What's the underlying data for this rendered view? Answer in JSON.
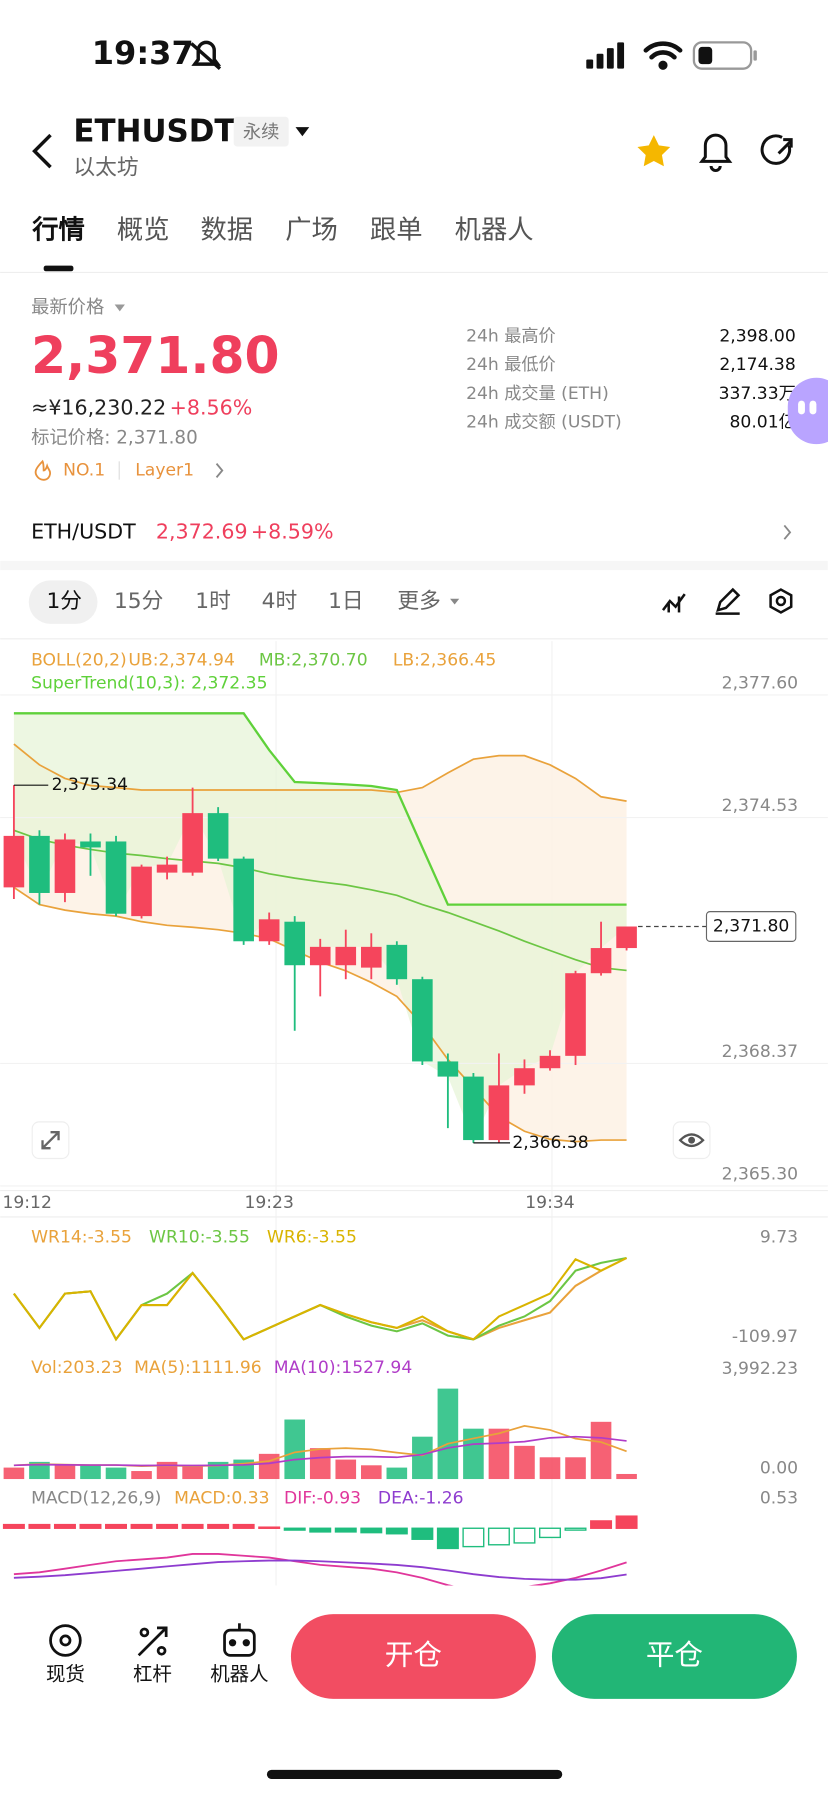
{
  "status": {
    "time": "19:37"
  },
  "header": {
    "title": "ETHUSDT",
    "tag": "永续",
    "subtitle": "以太坊"
  },
  "tabs": [
    "行情",
    "概览",
    "数据",
    "广场",
    "跟单",
    "机器人"
  ],
  "price": {
    "label": "最新价格",
    "last": "2,371.80",
    "cny": "≈¥16,230.22",
    "change": "+8.56%",
    "mark": "标记价格: 2,371.80",
    "rank": "NO.1",
    "sector": "Layer1"
  },
  "stats": [
    [
      "24h 最高价",
      "2,398.00"
    ],
    [
      "24h 最低价",
      "2,174.38"
    ],
    [
      "24h 成交量 (ETH)",
      "337.33万"
    ],
    [
      "24h 成交额 (USDT)",
      "80.01亿"
    ]
  ],
  "pair": {
    "name": "ETH/USDT",
    "price": "2,372.69",
    "change": "+8.59%"
  },
  "intervals": [
    "1分",
    "15分",
    "1时",
    "4时",
    "1日",
    "更多"
  ],
  "nav": [
    "现货",
    "杠杆",
    "机器人"
  ],
  "actions": {
    "open": "开仓",
    "close": "平仓"
  },
  "chart_data": {
    "type": "candlestick",
    "categories": [
      "19:12",
      null,
      null,
      null,
      null,
      null,
      null,
      null,
      null,
      null,
      "19:23",
      null,
      null,
      null,
      null,
      null,
      null,
      null,
      null,
      null,
      null,
      "19:34",
      null,
      null,
      null
    ],
    "open": [
      2372.78,
      2374.07,
      2372.64,
      2373.93,
      2373.93,
      2372.06,
      2373.15,
      2373.15,
      2374.64,
      2373.5,
      2371.43,
      2371.92,
      2370.83,
      2370.83,
      2370.77,
      2371.34,
      2370.48,
      2368.42,
      2368.04,
      2366.45,
      2367.82,
      2368.25,
      2368.56,
      2370.63,
      2371.26
    ],
    "high": [
      2375.34,
      2374.21,
      2374.13,
      2374.13,
      2374.07,
      2373.35,
      2373.55,
      2375.28,
      2374.79,
      2373.55,
      2372.15,
      2372.06,
      2371.49,
      2371.72,
      2371.63,
      2371.43,
      2370.54,
      2368.62,
      2368.13,
      2368.62,
      2368.47,
      2368.7,
      2370.69,
      2371.92,
      2371.8
    ],
    "low": [
      2372.49,
      2372.35,
      2372.41,
      2373.07,
      2372.06,
      2372.0,
      2372.98,
      2373.07,
      2373.44,
      2371.34,
      2371.34,
      2369.19,
      2370.05,
      2370.48,
      2370.48,
      2370.34,
      2368.33,
      2366.75,
      2366.38,
      2366.38,
      2367.61,
      2368.19,
      2368.33,
      2370.57,
      2371.2
    ],
    "close": [
      2374.07,
      2372.64,
      2373.98,
      2373.78,
      2372.12,
      2373.3,
      2373.35,
      2374.64,
      2373.5,
      2371.43,
      2371.98,
      2370.83,
      2371.29,
      2371.29,
      2371.29,
      2370.48,
      2368.42,
      2368.04,
      2366.45,
      2367.82,
      2368.25,
      2368.56,
      2370.63,
      2371.26,
      2371.8
    ],
    "up_color": "#f5455c",
    "down_color": "#1fbd7e",
    "ylim": [
      2365.3,
      2378.95
    ],
    "yticks": [
      {
        "value": 2377.6,
        "label": "2,377.60"
      },
      {
        "value": 2374.53,
        "label": "2,374.53"
      },
      {
        "value": 2368.37,
        "label": "2,368.37"
      },
      {
        "value": 2365.3,
        "label": "2,365.30"
      }
    ],
    "current_price": {
      "value": 2371.8,
      "label": "2,371.80"
    },
    "high_label": {
      "value": 2375.34,
      "label": "2,375.34"
    },
    "low_label": {
      "value": 2366.38,
      "label": "2,366.38"
    },
    "boll": {
      "label": "BOLL(20,2)",
      "upper_label": "UB:2,374.94",
      "middle_label": "MB:2,370.70",
      "lower_label": "LB:2,366.45",
      "color": "#e9a23b",
      "middle_color": "#6cc644",
      "upper": [
        2376.37,
        2375.85,
        2375.51,
        2375.33,
        2375.28,
        2375.22,
        2375.22,
        2375.22,
        2375.22,
        2375.22,
        2375.22,
        2375.22,
        2375.22,
        2375.22,
        2375.22,
        2375.16,
        2375.28,
        2375.65,
        2375.99,
        2376.08,
        2376.08,
        2375.85,
        2375.51,
        2375.05,
        2374.94
      ],
      "middle": [
        2374.21,
        2373.98,
        2373.84,
        2373.73,
        2373.64,
        2373.58,
        2373.5,
        2373.44,
        2373.38,
        2373.27,
        2373.12,
        2373.01,
        2372.92,
        2372.84,
        2372.72,
        2372.58,
        2372.35,
        2372.15,
        2371.92,
        2371.69,
        2371.43,
        2371.2,
        2370.97,
        2370.77,
        2370.7
      ],
      "lower": [
        2372.78,
        2372.35,
        2372.21,
        2372.12,
        2372.06,
        2371.92,
        2371.83,
        2371.78,
        2371.72,
        2371.63,
        2371.49,
        2371.2,
        2370.91,
        2370.69,
        2370.4,
        2370.05,
        2369.34,
        2368.47,
        2367.76,
        2367.04,
        2366.67,
        2366.47,
        2366.41,
        2366.45,
        2366.45
      ]
    },
    "supertrend": {
      "label": "SuperTrend(10,3): 2,372.35",
      "color": "#5fd13a",
      "values": [
        2377.14,
        2377.14,
        2377.14,
        2377.14,
        2377.14,
        2377.14,
        2377.14,
        2377.14,
        2377.14,
        2377.14,
        2376.22,
        2375.42,
        2375.39,
        2375.36,
        2375.32,
        2375.22,
        2373.78,
        2372.35,
        2372.35,
        2372.35,
        2372.35,
        2372.35,
        2372.35,
        2372.35,
        2372.35
      ]
    },
    "wr": {
      "ylim": [
        -109.97,
        9.73
      ],
      "yticks": [
        9.73,
        -109.97
      ],
      "series": [
        {
          "name": "WR14:-3.55",
          "color": "#e9a23b",
          "values": [
            -50.12,
            -95.01,
            -50.12,
            -47.13,
            -109.97,
            -65.08,
            -65.08,
            -23.19,
            -65.08,
            -109.97,
            -95.01,
            -80.05,
            -65.08,
            -77.05,
            -87.53,
            -95.01,
            -85.0,
            -99.49,
            -109.97,
            -95.0,
            -85.0,
            -75.0,
            -40.0,
            -20.2,
            -3.55
          ]
        },
        {
          "name": "WR10:-3.55",
          "color": "#6cc644",
          "values": [
            -50.12,
            -95.01,
            -50.12,
            -47.13,
            -109.97,
            -65.08,
            -50.12,
            -23.19,
            -65.08,
            -109.97,
            -95.01,
            -80.05,
            -65.08,
            -80.05,
            -92.0,
            -99.49,
            -89.0,
            -105.0,
            -109.97,
            -92.0,
            -80.05,
            -60.0,
            -20.2,
            -10.0,
            -3.55
          ]
        },
        {
          "name": "WR6:-3.55",
          "color": "#d9b400",
          "values": [
            -50.12,
            -95.01,
            -50.12,
            -47.13,
            -109.97,
            -65.08,
            -65.08,
            -23.19,
            -65.08,
            -109.97,
            -95.01,
            -80.05,
            -65.08,
            -77.05,
            -87.53,
            -95.01,
            -80.05,
            -99.49,
            -109.97,
            -80.05,
            -65.08,
            -50.12,
            -5.23,
            -20.2,
            -3.55
          ]
        }
      ]
    },
    "volume": {
      "label": "Vol:203.23",
      "ylim": [
        0,
        3992.23
      ],
      "yticks": [
        {
          "value": 3992.23,
          "label": "3,992.23"
        },
        {
          "value": 0,
          "label": "0.00"
        }
      ],
      "values": [
        459,
        688,
        551,
        551,
        459,
        321,
        688,
        551,
        688,
        780,
        1010,
        2386,
        1239,
        780,
        551,
        459,
        1698,
        3625,
        2019,
        2019,
        1331,
        872,
        872,
        2294,
        203.23
      ],
      "ma": [
        {
          "name": "MA(5):1111.96",
          "color": "#e9a23b",
          "values": [
            550,
            600,
            580,
            560,
            560,
            520,
            540,
            520,
            540,
            620,
            720,
            1070,
            1200,
            1240,
            1190,
            1060,
            950,
            1420,
            1630,
            1830,
            2130,
            1970,
            1620,
            1480,
            1111.96
          ]
        },
        {
          "name": "MA(10):1527.94",
          "color": "#b03cc8",
          "values": [
            550,
            580,
            570,
            560,
            560,
            540,
            550,
            540,
            550,
            570,
            630,
            780,
            860,
            900,
            900,
            870,
            980,
            1250,
            1400,
            1440,
            1500,
            1650,
            1700,
            1650,
            1527.94
          ]
        }
      ]
    },
    "macd": {
      "label": "MACD(12,26,9)",
      "hist_label": "MACD:0.33",
      "ylim": [
        -1.56,
        0.53
      ],
      "yticks": [
        0.53
      ],
      "hist": [
        0.1,
        0.1,
        0.1,
        0.1,
        0.1,
        0.1,
        0.1,
        0.1,
        0.1,
        0.1,
        0.03,
        -0.05,
        -0.1,
        -0.1,
        -0.12,
        -0.15,
        -0.3,
        -0.55,
        -0.5,
        -0.45,
        -0.4,
        -0.25,
        -0.05,
        0.2,
        0.33
      ],
      "lines": [
        {
          "name": "DIF:-0.93",
          "color": "#e0369b",
          "values": [
            -1.25,
            -1.2,
            -1.1,
            -1.0,
            -0.9,
            -0.85,
            -0.8,
            -0.7,
            -0.7,
            -0.75,
            -0.8,
            -0.9,
            -1.0,
            -1.05,
            -1.1,
            -1.2,
            -1.35,
            -1.55,
            -1.7,
            -1.7,
            -1.6,
            -1.5,
            -1.35,
            -1.15,
            -0.93
          ]
        },
        {
          "name": "DEA:-1.26",
          "color": "#8e3ccf",
          "values": [
            -1.35,
            -1.32,
            -1.28,
            -1.22,
            -1.16,
            -1.1,
            -1.04,
            -0.98,
            -0.92,
            -0.9,
            -0.88,
            -0.88,
            -0.9,
            -0.93,
            -0.96,
            -1.0,
            -1.06,
            -1.15,
            -1.25,
            -1.33,
            -1.38,
            -1.4,
            -1.4,
            -1.36,
            -1.26
          ]
        }
      ]
    }
  }
}
